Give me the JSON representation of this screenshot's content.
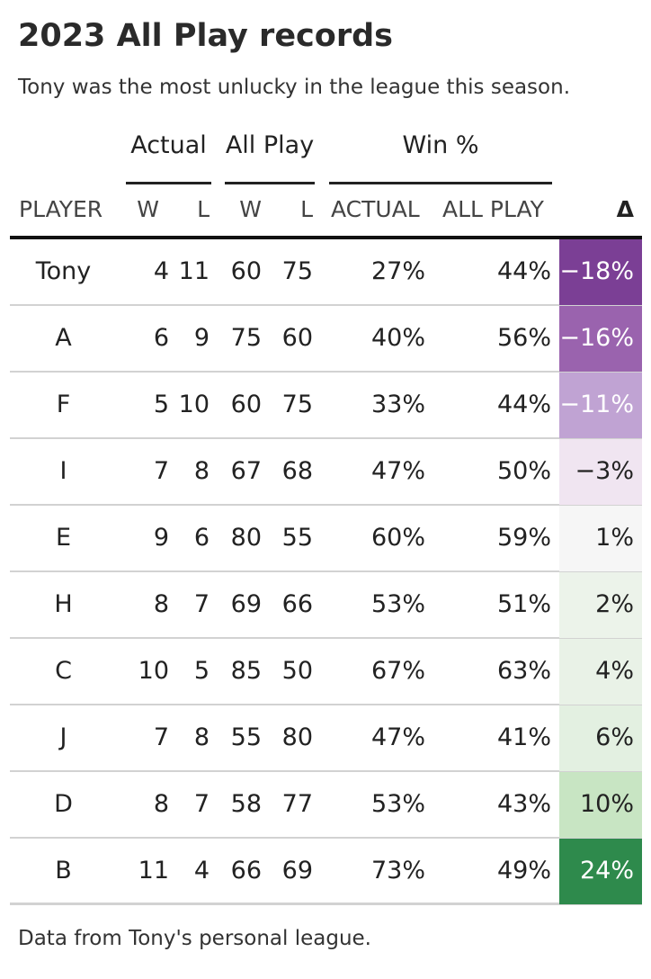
{
  "title": "2023 All Play records",
  "subtitle": "Tony was the most unlucky in the league this season.",
  "groups": {
    "actual": "Actual",
    "all_play": "All Play",
    "win_pct": "Win %"
  },
  "columns": {
    "player": "PLAYER",
    "actual_w": "W",
    "actual_l": "L",
    "allplay_w": "W",
    "allplay_l": "L",
    "win_actual": "ACTUAL",
    "win_allplay": "ALL PLAY",
    "delta": "Δ"
  },
  "rows": [
    {
      "player": "Tony",
      "aw": "4",
      "al": "11",
      "pw": "60",
      "pl": "75",
      "wa": "27%",
      "wp": "44%",
      "delta": "−18%",
      "bg": "#7b3f95",
      "fg": "#ffffff"
    },
    {
      "player": "A",
      "aw": "6",
      "al": "9",
      "pw": "75",
      "pl": "60",
      "wa": "40%",
      "wp": "56%",
      "delta": "−16%",
      "bg": "#9a63ae",
      "fg": "#ffffff"
    },
    {
      "player": "F",
      "aw": "5",
      "al": "10",
      "pw": "60",
      "pl": "75",
      "wa": "33%",
      "wp": "44%",
      "delta": "−11%",
      "bg": "#c0a3d3",
      "fg": "#ffffff"
    },
    {
      "player": "I",
      "aw": "7",
      "al": "8",
      "pw": "67",
      "pl": "68",
      "wa": "47%",
      "wp": "50%",
      "delta": "−3%",
      "bg": "#f0e5f1",
      "fg": "#222222"
    },
    {
      "player": "E",
      "aw": "9",
      "al": "6",
      "pw": "80",
      "pl": "55",
      "wa": "60%",
      "wp": "59%",
      "delta": "1%",
      "bg": "#f6f6f6",
      "fg": "#222222"
    },
    {
      "player": "H",
      "aw": "8",
      "al": "7",
      "pw": "69",
      "pl": "66",
      "wa": "53%",
      "wp": "51%",
      "delta": "2%",
      "bg": "#ecf3ea",
      "fg": "#222222"
    },
    {
      "player": "C",
      "aw": "10",
      "al": "5",
      "pw": "85",
      "pl": "50",
      "wa": "67%",
      "wp": "63%",
      "delta": "4%",
      "bg": "#e9f2e7",
      "fg": "#222222"
    },
    {
      "player": "J",
      "aw": "7",
      "al": "8",
      "pw": "55",
      "pl": "80",
      "wa": "47%",
      "wp": "41%",
      "delta": "6%",
      "bg": "#e3f0e1",
      "fg": "#222222"
    },
    {
      "player": "D",
      "aw": "8",
      "al": "7",
      "pw": "58",
      "pl": "77",
      "wa": "53%",
      "wp": "43%",
      "delta": "10%",
      "bg": "#c8e5c3",
      "fg": "#222222"
    },
    {
      "player": "B",
      "aw": "11",
      "al": "4",
      "pw": "66",
      "pl": "69",
      "wa": "73%",
      "wp": "49%",
      "delta": "24%",
      "bg": "#2e8a4c",
      "fg": "#ffffff"
    }
  ],
  "footer": "Data from Tony's personal league.",
  "chart_data": {
    "type": "table",
    "title": "2023 All Play records",
    "columns": [
      "PLAYER",
      "Actual W",
      "Actual L",
      "All Play W",
      "All Play L",
      "Win % ACTUAL",
      "Win % ALL PLAY",
      "Δ"
    ],
    "rows": [
      [
        "Tony",
        4,
        11,
        60,
        75,
        27,
        44,
        -18
      ],
      [
        "A",
        6,
        9,
        75,
        60,
        40,
        56,
        -16
      ],
      [
        "F",
        5,
        10,
        60,
        75,
        33,
        44,
        -11
      ],
      [
        "I",
        7,
        8,
        67,
        68,
        47,
        50,
        -3
      ],
      [
        "E",
        9,
        6,
        80,
        55,
        60,
        59,
        1
      ],
      [
        "H",
        8,
        7,
        69,
        66,
        53,
        51,
        2
      ],
      [
        "C",
        10,
        5,
        85,
        50,
        67,
        63,
        4
      ],
      [
        "J",
        7,
        8,
        55,
        80,
        47,
        41,
        6
      ],
      [
        "D",
        8,
        7,
        58,
        77,
        53,
        43,
        10
      ],
      [
        "B",
        11,
        4,
        66,
        69,
        73,
        49,
        24
      ]
    ]
  }
}
